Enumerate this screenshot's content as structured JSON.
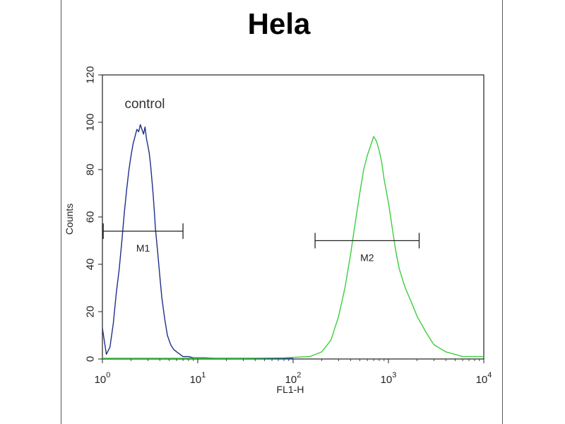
{
  "chart_data": {
    "type": "line",
    "title": "Hela",
    "xlabel": "FL1-H",
    "ylabel": "Counts",
    "x_scale": "log",
    "xlim": [
      1,
      10000
    ],
    "ylim": [
      0,
      120
    ],
    "y_ticks": [
      0,
      20,
      40,
      60,
      80,
      100,
      120
    ],
    "x_ticks": [
      {
        "value": 1,
        "base": "10",
        "exp": "0"
      },
      {
        "value": 10,
        "base": "10",
        "exp": "1"
      },
      {
        "value": 100,
        "base": "10",
        "exp": "2"
      },
      {
        "value": 1000,
        "base": "10",
        "exp": "3"
      },
      {
        "value": 10000,
        "base": "10",
        "exp": "4"
      }
    ],
    "annotation": "control",
    "series": [
      {
        "color": "#1f2f8a",
        "x": [
          1.0,
          1.1,
          1.2,
          1.3,
          1.4,
          1.5,
          1.6,
          1.7,
          1.8,
          1.9,
          2.0,
          2.1,
          2.2,
          2.3,
          2.4,
          2.5,
          2.6,
          2.7,
          2.8,
          2.9,
          3.0,
          3.1,
          3.2,
          3.3,
          3.4,
          3.5,
          3.6,
          3.8,
          4.0,
          4.2,
          4.5,
          4.8,
          5.2,
          5.6,
          6.0,
          6.5,
          7.0,
          8.0,
          9.0,
          10.0,
          12.0,
          15.0,
          20.0,
          30.0,
          50.0,
          80.0,
          100.0
        ],
        "y": [
          13,
          2,
          5,
          15,
          28,
          38,
          50,
          62,
          72,
          80,
          86,
          91,
          94,
          97,
          96,
          99,
          97,
          95,
          98,
          93,
          90,
          87,
          82,
          76,
          70,
          63,
          55,
          45,
          35,
          26,
          17,
          10,
          6,
          4,
          3,
          2,
          1,
          1,
          0.5,
          0.5,
          0.5,
          0.3,
          0.3,
          0.3,
          0.2,
          0.2,
          0.2
        ]
      },
      {
        "color": "#3ccf3c",
        "x": [
          1.0,
          3.0,
          10.0,
          30.0,
          80.0,
          150.0,
          200.0,
          250.0,
          300.0,
          350.0,
          400.0,
          450.0,
          500.0,
          550.0,
          600.0,
          650.0,
          700.0,
          750.0,
          800.0,
          850.0,
          900.0,
          1000.0,
          1100.0,
          1200.0,
          1300.0,
          1500.0,
          1700.0,
          2000.0,
          2500.0,
          3000.0,
          4000.0,
          6000.0,
          10000.0
        ],
        "y": [
          0.3,
          0.3,
          0.3,
          0.3,
          0.5,
          1,
          3,
          8,
          18,
          30,
          44,
          58,
          70,
          80,
          86,
          90,
          94,
          92,
          88,
          83,
          76,
          66,
          55,
          45,
          38,
          30,
          25,
          18,
          11,
          6,
          3,
          1,
          1
        ]
      }
    ],
    "markers": [
      {
        "label": "M1",
        "x_start": 1.02,
        "x_end": 7.0,
        "y": 54
      },
      {
        "label": "M2",
        "x_start": 170,
        "x_end": 2100,
        "y": 50
      }
    ]
  }
}
